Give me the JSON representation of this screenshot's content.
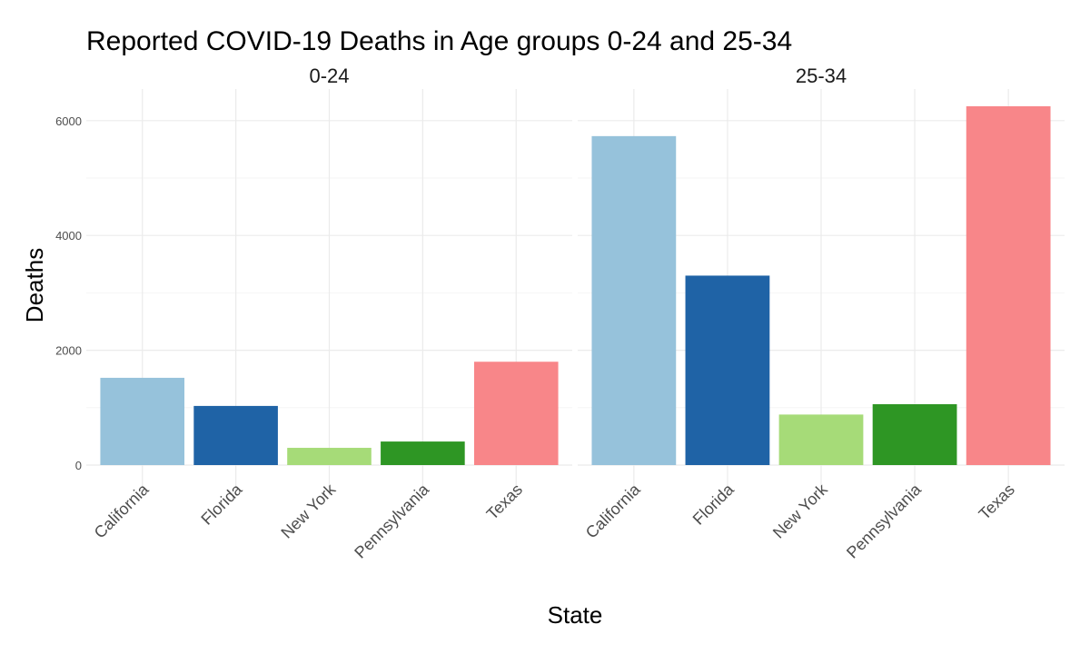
{
  "chart_data": {
    "type": "bar",
    "title": "Reported COVID-19 Deaths in Age groups 0-24 and 25-34",
    "xlabel": "State",
    "ylabel": "Deaths",
    "ylim": [
      0,
      6250
    ],
    "yticks": [
      0,
      2000,
      4000,
      6000
    ],
    "grid": true,
    "legend": "none",
    "categories": [
      "California",
      "Florida",
      "New York",
      "Pennsylvania",
      "Texas"
    ],
    "category_colors": [
      "#96c2db",
      "#1f63a6",
      "#a6db78",
      "#2e9624",
      "#f88689"
    ],
    "facets": [
      {
        "label": "0-24",
        "values": [
          1520,
          1030,
          300,
          410,
          1800
        ]
      },
      {
        "label": "25-34",
        "values": [
          5730,
          3300,
          880,
          1060,
          6250
        ]
      }
    ]
  }
}
